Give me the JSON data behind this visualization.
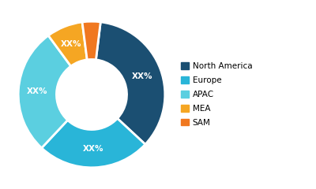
{
  "labels": [
    "North America",
    "Europe",
    "APAC",
    "MEA",
    "SAM"
  ],
  "values": [
    35,
    25,
    28,
    8,
    4
  ],
  "colors": [
    "#1b4f72",
    "#29b5d8",
    "#5bcfe0",
    "#f5a623",
    "#f07820"
  ],
  "text_labels": [
    "XX%",
    "XX%",
    "XX%",
    "XX%",
    "XX%"
  ],
  "legend_labels": [
    "North America",
    "Europe",
    "APAC",
    "MEA",
    "SAM"
  ],
  "wedge_linewidth": 2.0,
  "wedge_edgecolor": "#ffffff",
  "startangle": 83,
  "donut_ratio": 0.52,
  "font_size": 7.5,
  "legend_font_size": 7.5,
  "min_label_pct": 6
}
